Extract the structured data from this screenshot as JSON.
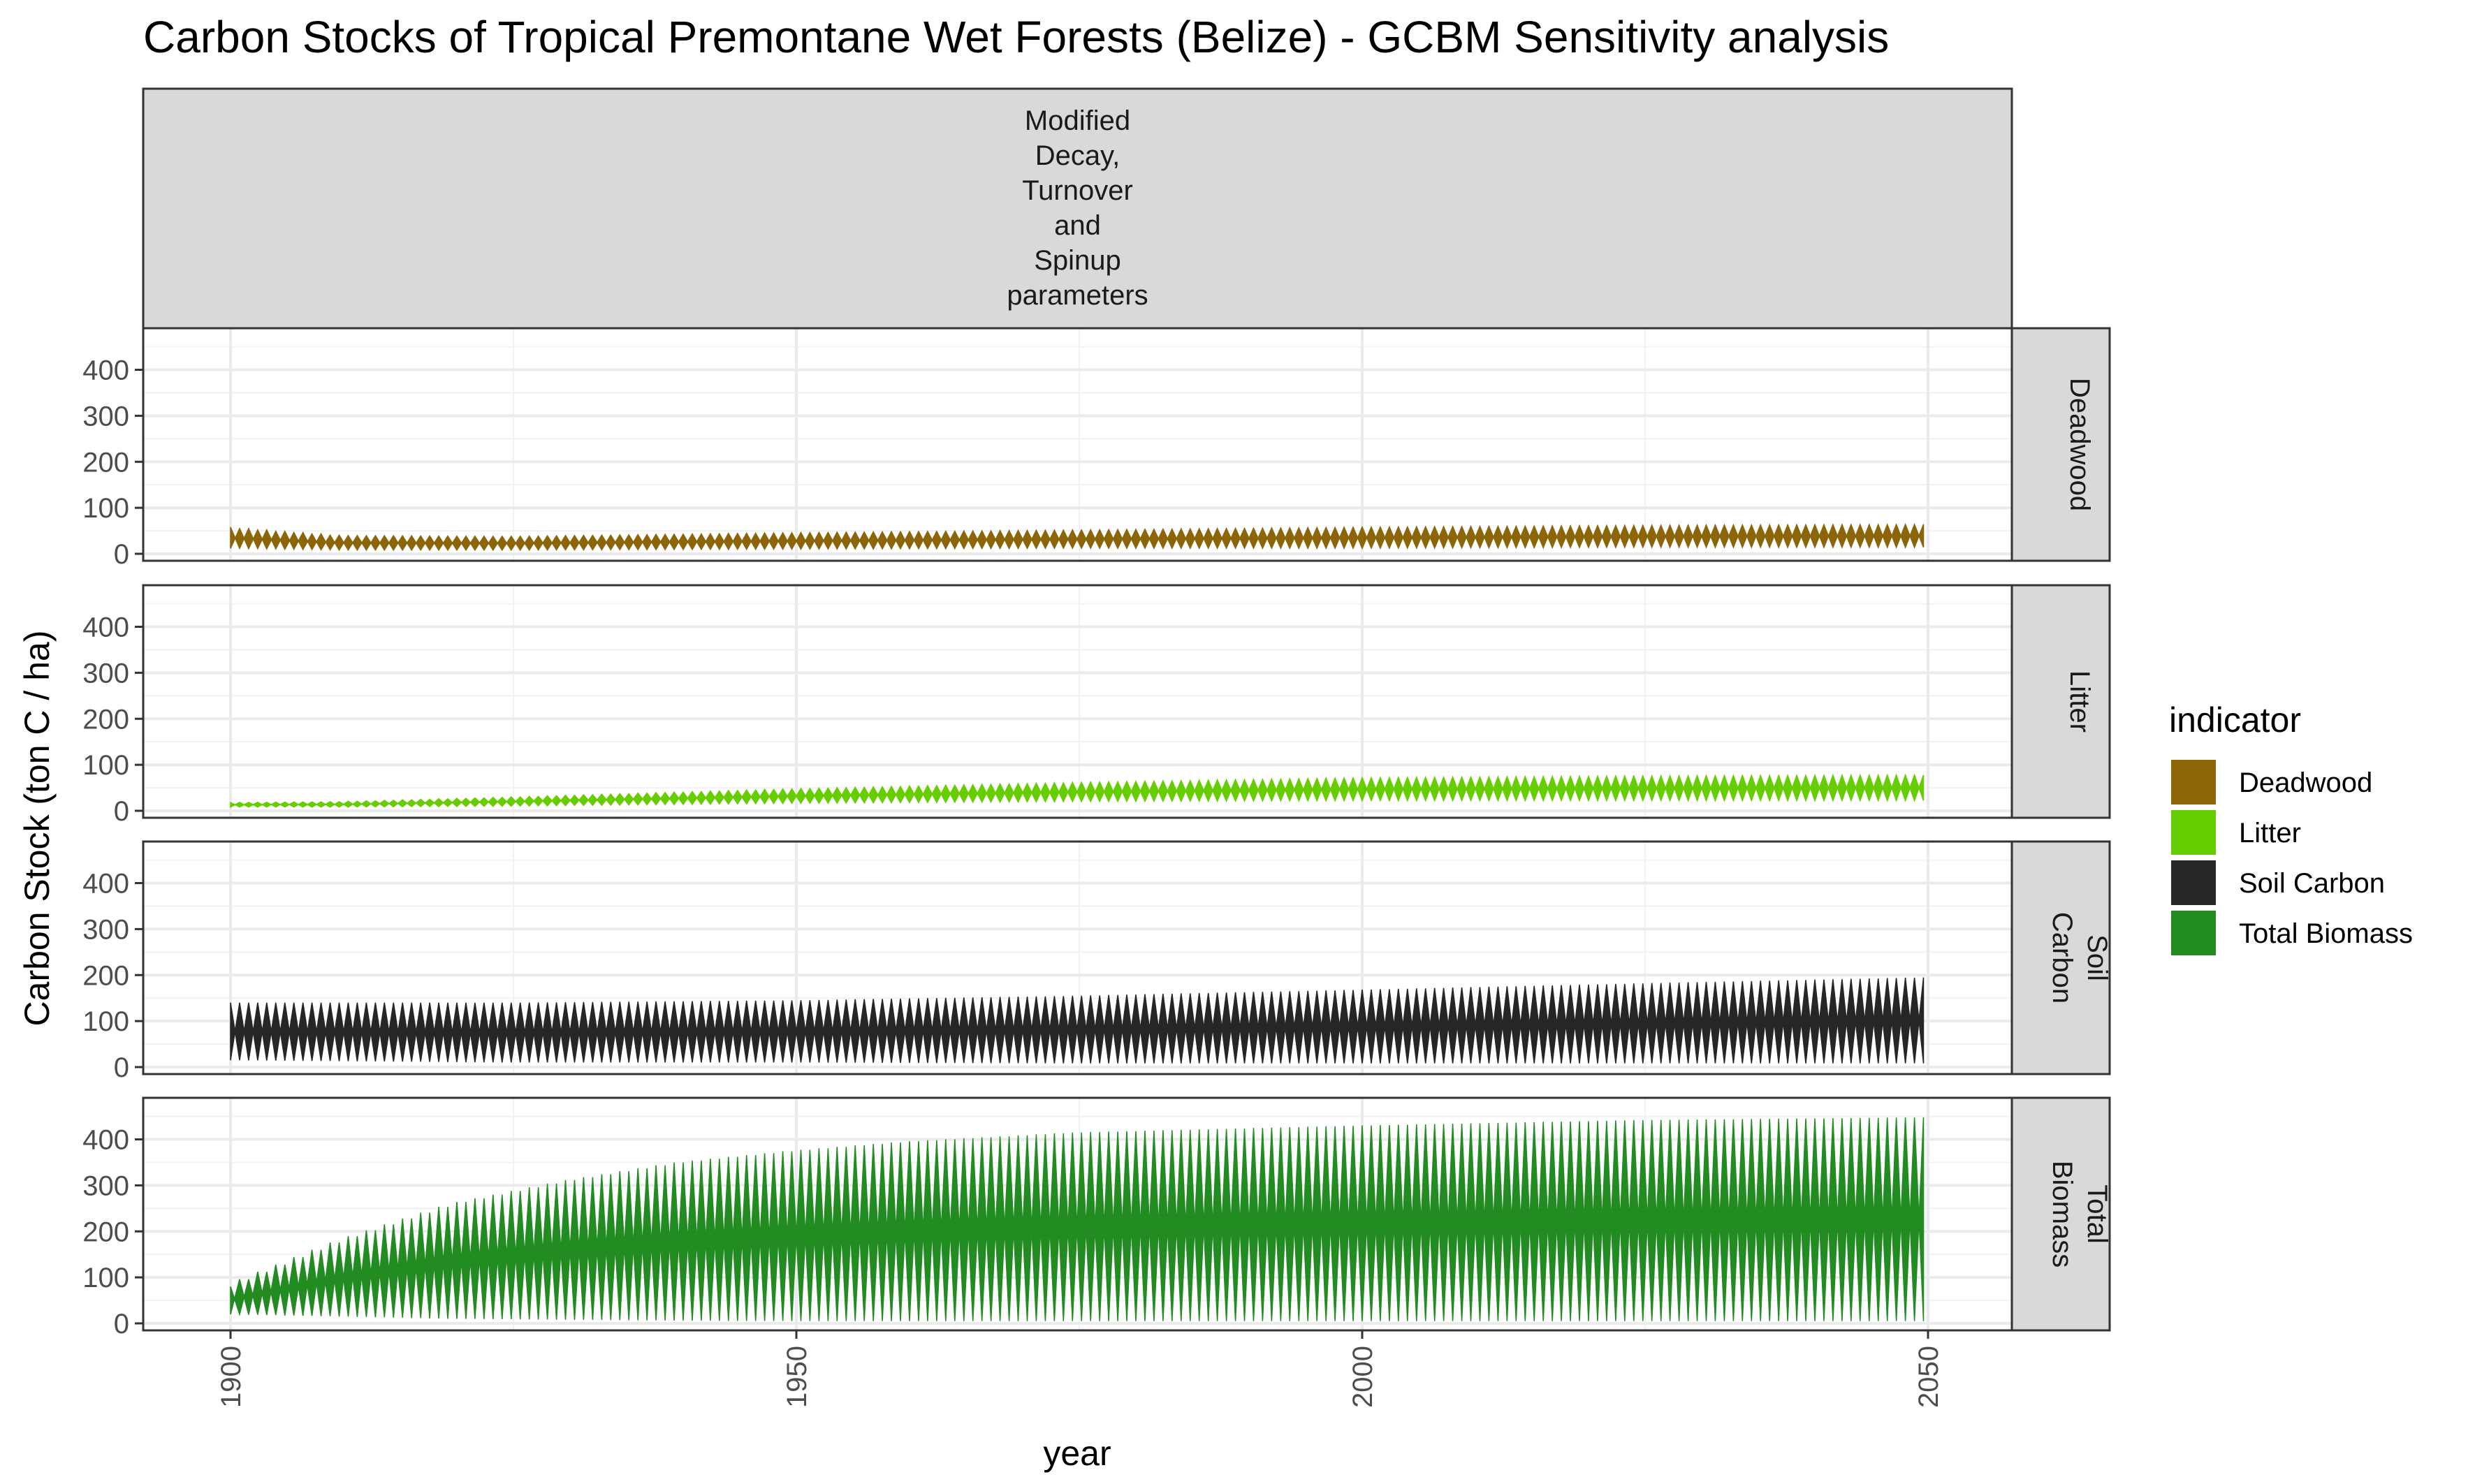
{
  "chart_data": {
    "type": "area",
    "title": "Carbon Stocks of Tropical Premontane Wet Forests (Belize) - GCBM Sensitivity analysis",
    "column_facet": [
      "Modified",
      "Decay,",
      "Turnover",
      "and",
      "Spinup",
      "parameters"
    ],
    "xlabel": "year",
    "ylabel": "Carbon Stock (ton C / ha)",
    "xlim": [
      1900,
      2050
    ],
    "ylim": [
      0,
      460
    ],
    "x_ticks": [
      1900,
      1950,
      2000,
      2050
    ],
    "y_ticks": [
      0,
      100,
      200,
      300,
      400
    ],
    "grid": true,
    "cycle_years": 1.6,
    "legend": {
      "title": "indicator",
      "position": "right",
      "entries": [
        "Deadwood",
        "Litter",
        "Soil Carbon",
        "Total Biomass"
      ]
    },
    "series": [
      {
        "name": "Deadwood",
        "strip": [
          "Deadwood"
        ],
        "color": "#8B6508",
        "x": [
          1900,
          1910,
          1925,
          1950,
          1975,
          2000,
          2025,
          2050
        ],
        "upper": [
          58,
          40,
          38,
          46,
          52,
          58,
          62,
          64
        ],
        "lower": [
          12,
          8,
          8,
          10,
          12,
          12,
          14,
          14
        ]
      },
      {
        "name": "Litter",
        "strip": [
          "Litter"
        ],
        "color": "#66CD00",
        "x": [
          1900,
          1910,
          1925,
          1950,
          1975,
          2000,
          2025,
          2050
        ],
        "upper": [
          18,
          20,
          30,
          48,
          62,
          72,
          76,
          78
        ],
        "lower": [
          8,
          8,
          10,
          16,
          20,
          22,
          22,
          22
        ]
      },
      {
        "name": "Soil Carbon",
        "strip": [
          "Soil",
          "Carbon"
        ],
        "color": "#262626",
        "x": [
          1900,
          1925,
          1950,
          1975,
          2000,
          2025,
          2050
        ],
        "upper": [
          140,
          140,
          145,
          155,
          168,
          182,
          195
        ],
        "lower": [
          15,
          10,
          10,
          8,
          8,
          8,
          8
        ]
      },
      {
        "name": "Total Biomass",
        "strip": [
          "Total",
          "Biomass"
        ],
        "color": "#228B22",
        "x": [
          1900,
          1910,
          1920,
          1930,
          1940,
          1950,
          1960,
          1975,
          2000,
          2025,
          2050
        ],
        "upper": [
          80,
          180,
          260,
          310,
          350,
          375,
          395,
          415,
          430,
          442,
          448
        ],
        "lower": [
          20,
          15,
          10,
          8,
          6,
          5,
          5,
          5,
          5,
          5,
          5
        ]
      }
    ]
  }
}
